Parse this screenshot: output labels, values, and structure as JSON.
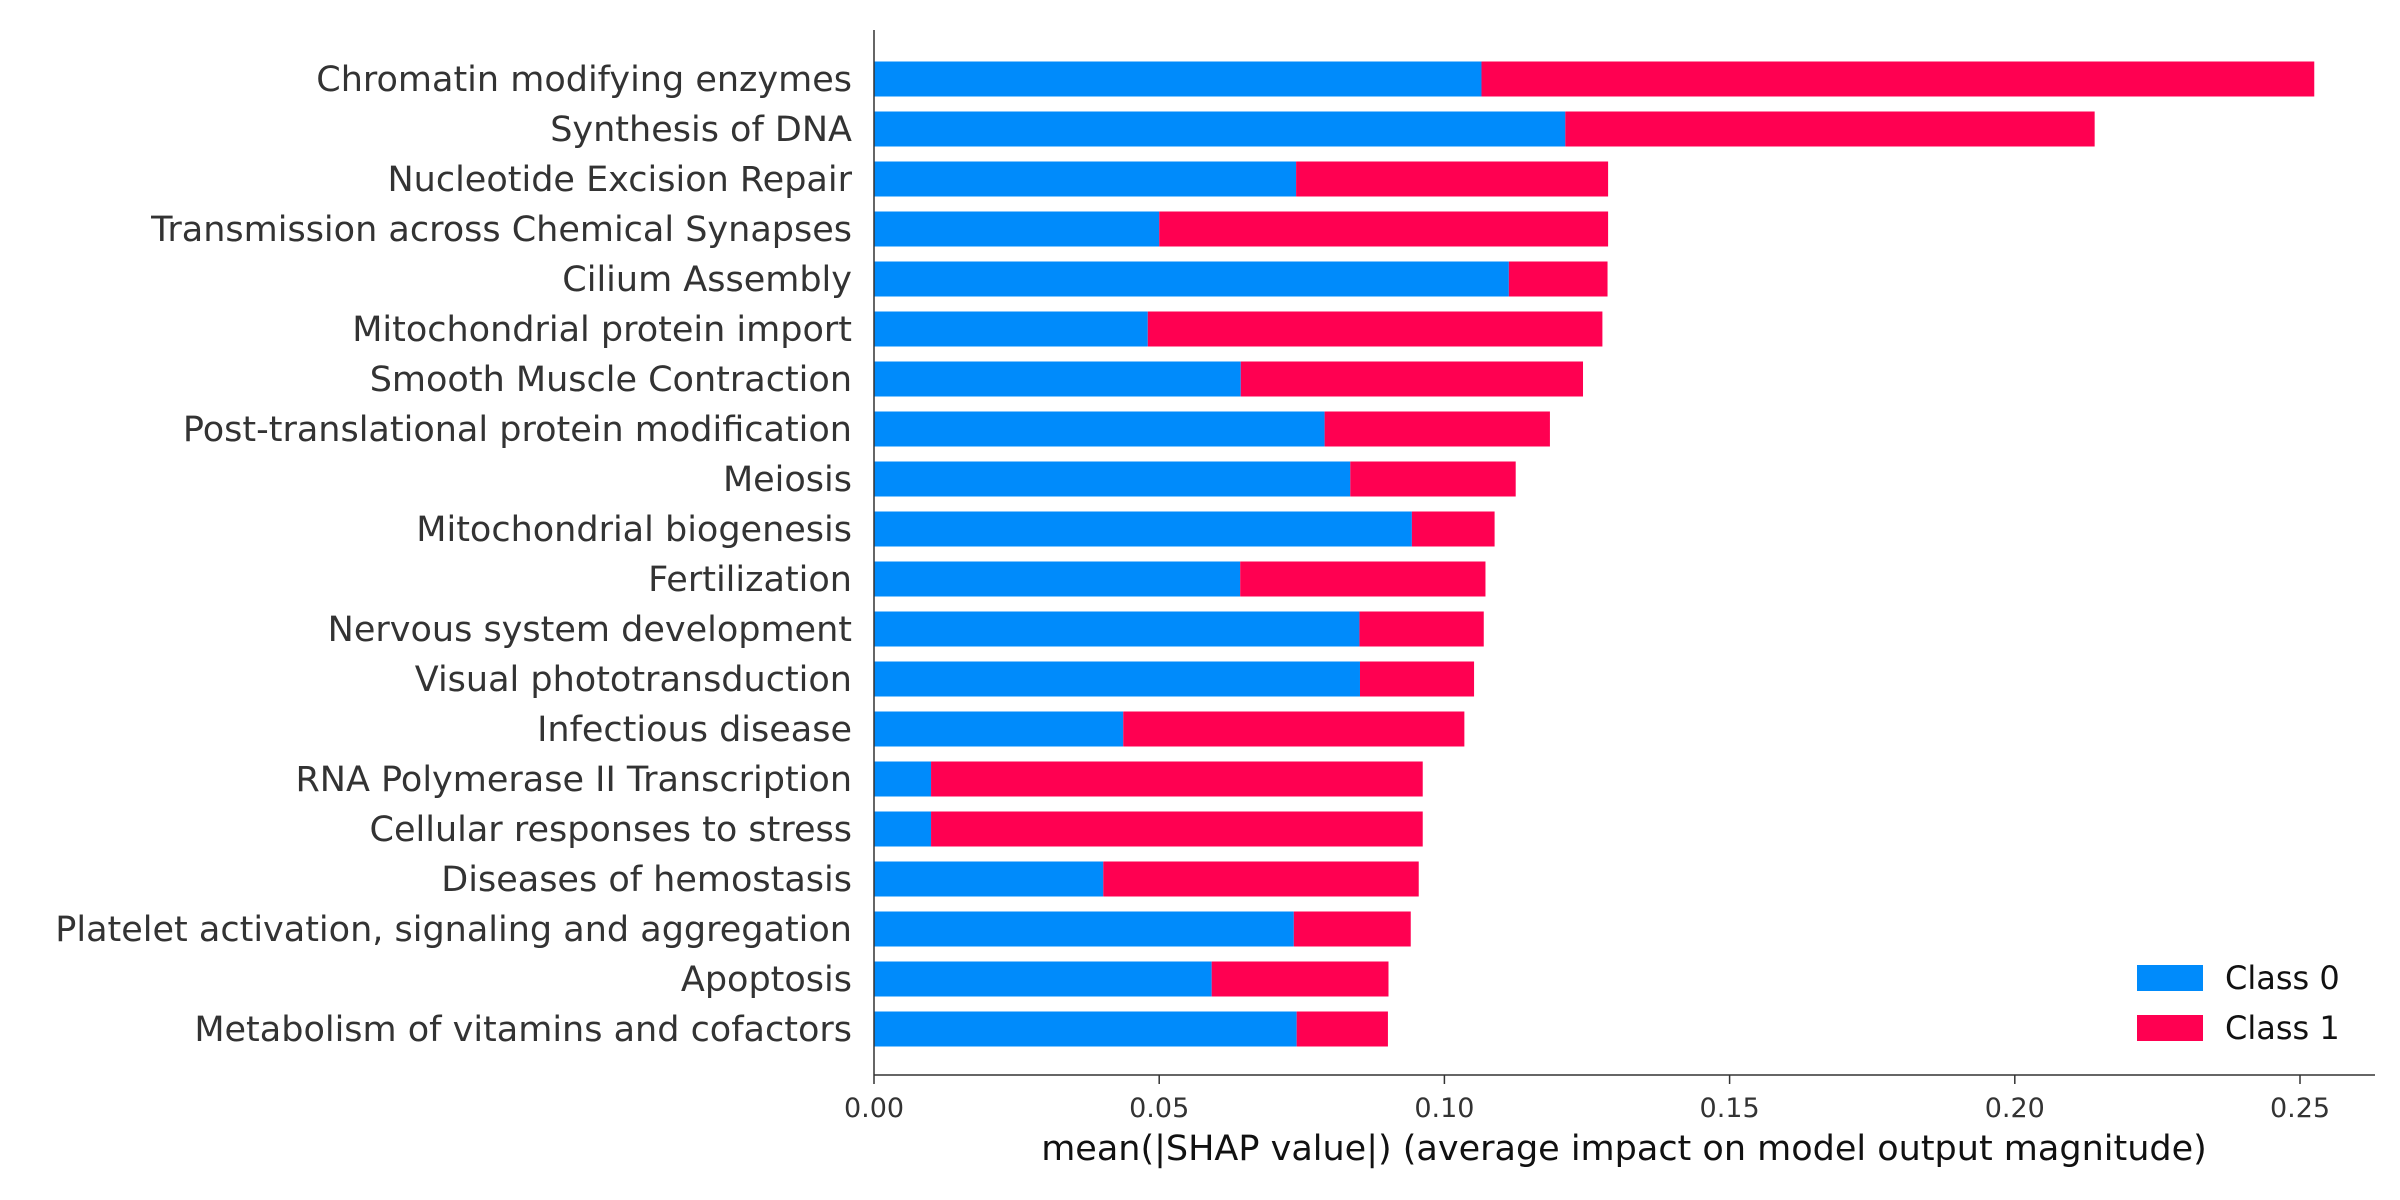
{
  "chart_data": {
    "type": "bar",
    "orientation": "horizontal",
    "stacked": true,
    "title": "",
    "xlabel": "mean(|SHAP value|) (average impact on model output magnitude)",
    "ylabel": "",
    "xlim": [
      0,
      0.265
    ],
    "xticks": [
      0.0,
      0.05,
      0.1,
      0.15,
      0.2,
      0.25
    ],
    "xtick_labels": [
      "0.00",
      "0.05",
      "0.10",
      "0.15",
      "0.20",
      "0.25"
    ],
    "grid": false,
    "legend_position": "bottom-right",
    "categories": [
      "Chromatin modifying enzymes",
      "Synthesis of DNA",
      "Nucleotide Excision Repair",
      "Transmission across Chemical Synapses",
      "Cilium Assembly",
      "Mitochondrial protein import",
      "Smooth Muscle Contraction",
      "Post-translational protein modification",
      "Meiosis",
      "Mitochondrial biogenesis",
      "Fertilization",
      "Nervous system development",
      "Visual phototransduction",
      "Infectious disease",
      "RNA Polymerase II Transcription",
      "Cellular responses to stress",
      "Diseases of hemostasis",
      "Platelet activation, signaling and aggregation",
      "Apoptosis",
      "Metabolism of vitamins and cofactors"
    ],
    "series": [
      {
        "name": "Class 0",
        "color": "#008bfb",
        "values": [
          0.1065,
          0.1212,
          0.074,
          0.05,
          0.1113,
          0.048,
          0.0643,
          0.079,
          0.0835,
          0.0943,
          0.0642,
          0.0851,
          0.0852,
          0.0437,
          0.01,
          0.01,
          0.0402,
          0.0736,
          0.0592,
          0.0741
        ]
      },
      {
        "name": "Class 1",
        "color": "#ff0051",
        "values": [
          0.146,
          0.0928,
          0.0547,
          0.0787,
          0.0173,
          0.0797,
          0.06,
          0.0395,
          0.029,
          0.0145,
          0.043,
          0.0218,
          0.02,
          0.0598,
          0.0862,
          0.0862,
          0.0553,
          0.0205,
          0.031,
          0.016
        ]
      }
    ]
  }
}
